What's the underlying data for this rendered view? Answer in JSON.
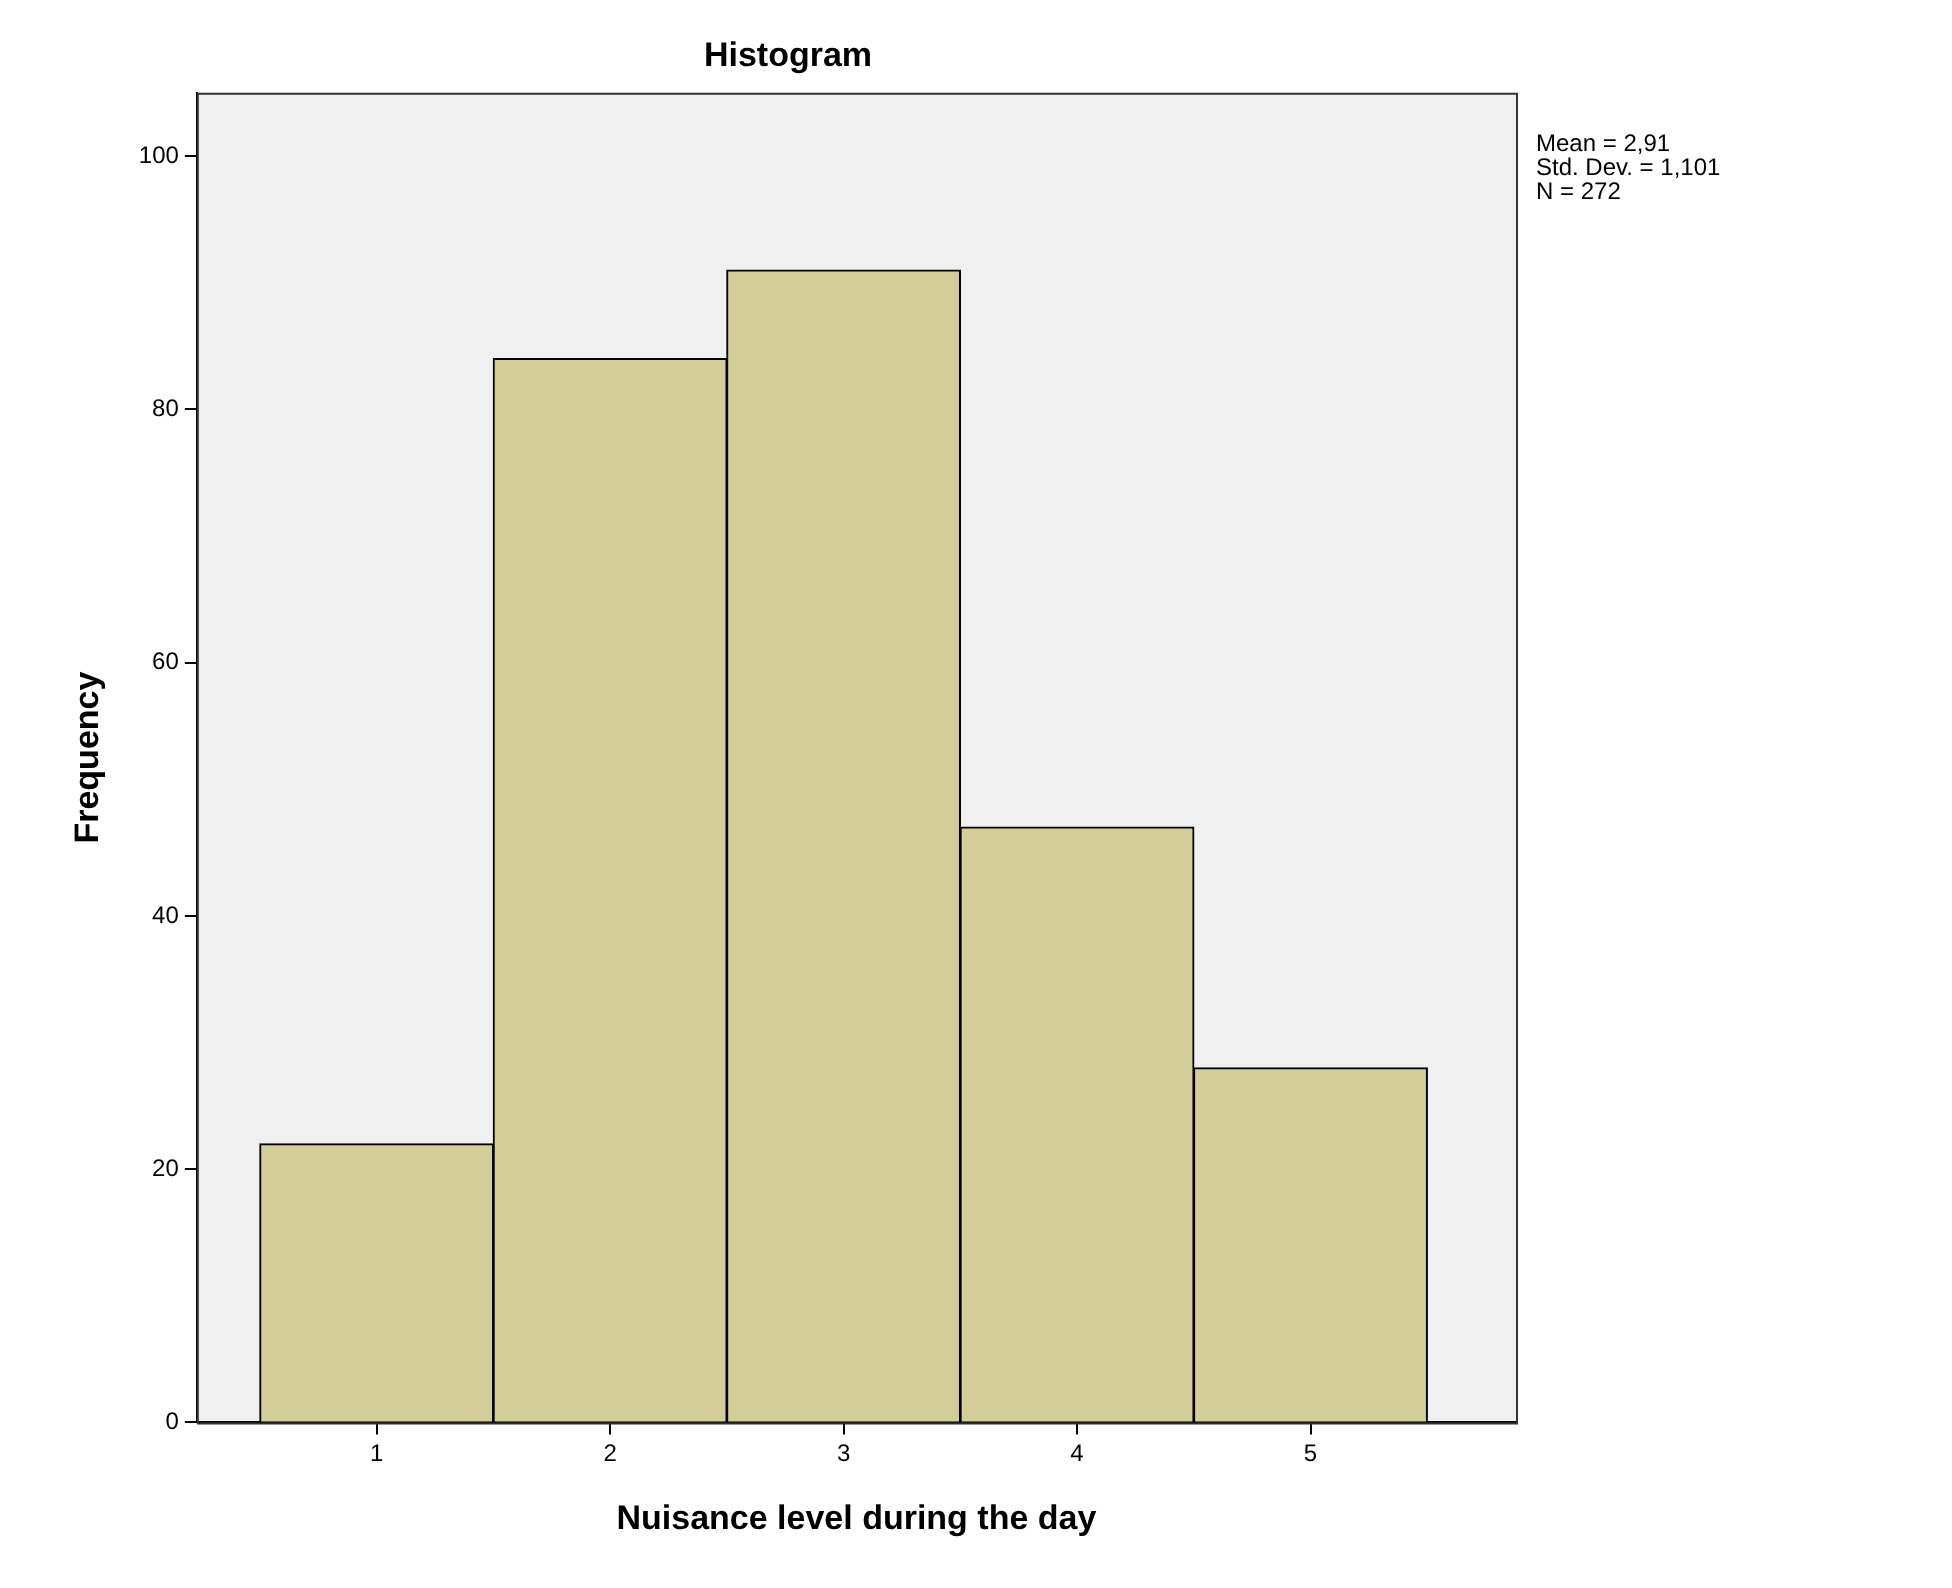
{
  "chart_data": {
    "type": "histogram",
    "title": "Histogram",
    "xlabel": "Nuisance level during the day",
    "ylabel": "Frequency",
    "bins": [
      0.5,
      1.5,
      2.5,
      3.5,
      4.5,
      5.5
    ],
    "values": [
      22,
      84,
      91,
      47,
      28
    ],
    "color": "#d3ce97",
    "xlim": [
      0.23,
      5.88
    ],
    "xticks": [
      1,
      2,
      3,
      4,
      5
    ],
    "ylim": [
      0,
      105
    ],
    "yticks": [
      0,
      20,
      40,
      60,
      80,
      100
    ],
    "grid": false,
    "legend": false,
    "annotations": [
      "Mean = 2,91",
      "Std. Dev. = 1,101",
      "N = 272"
    ]
  }
}
